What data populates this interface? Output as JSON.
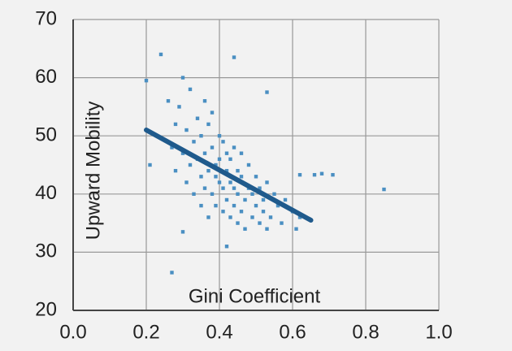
{
  "chart_data": {
    "type": "scatter",
    "x_label": "Gini Coefficient",
    "y_label": "Upward Mobility",
    "color": "#4a8fc2",
    "x": [
      0.26,
      0.27,
      0.28,
      0.28,
      0.29,
      0.3,
      0.3,
      0.31,
      0.31,
      0.32,
      0.32,
      0.33,
      0.33,
      0.34,
      0.34,
      0.35,
      0.35,
      0.35,
      0.36,
      0.36,
      0.36,
      0.37,
      0.37,
      0.37,
      0.38,
      0.38,
      0.38,
      0.39,
      0.39,
      0.39,
      0.4,
      0.4,
      0.4,
      0.41,
      0.41,
      0.41,
      0.42,
      0.42,
      0.42,
      0.43,
      0.43,
      0.43,
      0.44,
      0.44,
      0.44,
      0.45,
      0.45,
      0.45,
      0.46,
      0.46,
      0.46,
      0.47,
      0.47,
      0.48,
      0.48,
      0.49,
      0.49,
      0.5,
      0.5,
      0.51,
      0.51,
      0.52,
      0.52,
      0.53,
      0.53,
      0.54,
      0.55,
      0.56,
      0.57,
      0.58,
      0.6,
      0.62,
      0.2,
      0.24,
      0.44,
      0.27,
      0.85,
      0.68,
      0.71,
      0.66,
      0.62,
      0.21,
      0.42,
      0.3,
      0.53,
      0.61
    ],
    "y": [
      56,
      48,
      52,
      44,
      55,
      47,
      60,
      42,
      51,
      58,
      45,
      49,
      40,
      53,
      46,
      38,
      43,
      50,
      56,
      41,
      47,
      36,
      44,
      52,
      40,
      48,
      54,
      38,
      45,
      43,
      42,
      46,
      50,
      37,
      41,
      49,
      39,
      44,
      47,
      36,
      42,
      46,
      41,
      48,
      38,
      35,
      40,
      44,
      37,
      43,
      47,
      39,
      34,
      41,
      45,
      36,
      40,
      38,
      43,
      35,
      41,
      37,
      39,
      34,
      42,
      36,
      40,
      38,
      35,
      39,
      37,
      36,
      59.5,
      64,
      63.5,
      26.5,
      40.8,
      43.5,
      43.3,
      43.3,
      43.3,
      45,
      31,
      33.5,
      57.5,
      34
    ],
    "fit_line": {
      "x": [
        0.2,
        0.65
      ],
      "y": [
        51,
        35.5
      ],
      "color": "#1f5a8c"
    },
    "xlim": [
      0,
      1
    ],
    "ylim": [
      20,
      70
    ],
    "xticks": [
      {
        "value": 0,
        "label": "0.0"
      },
      0.2,
      0.4,
      0.6,
      0.8,
      {
        "value": 1,
        "label": "1.0"
      }
    ],
    "yticks": [
      20,
      30,
      40,
      50,
      60,
      70
    ],
    "grid": true
  }
}
